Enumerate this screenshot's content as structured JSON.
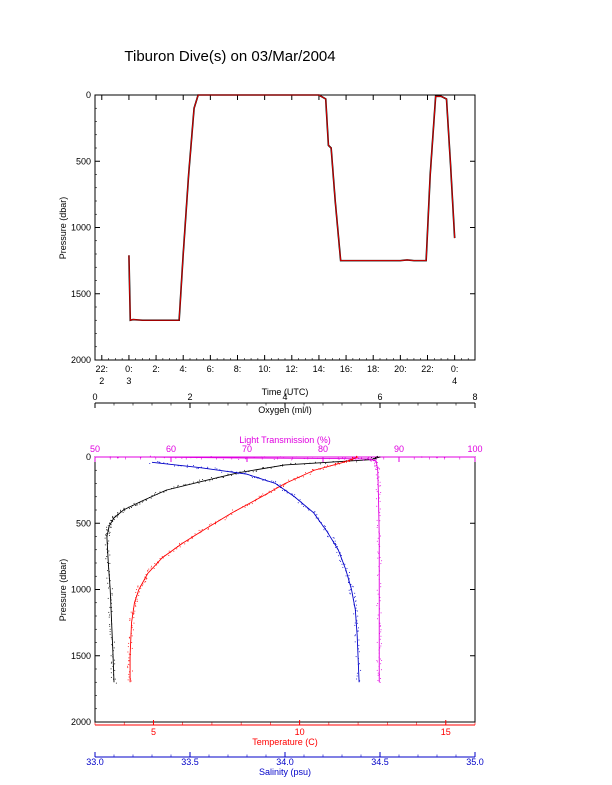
{
  "title": "Tiburon Dive(s) on 03/Mar/2004",
  "colors": {
    "axis": "#000000",
    "temperature": "#ff0000",
    "salinity": "#0000c8",
    "oxygen": "#000000",
    "transmission": "#e000e0",
    "depth_trace_line": "#ff0000",
    "depth_trace_points": "#000000"
  },
  "chart_data": [
    {
      "type": "line",
      "name": "depth-time",
      "xlabel": "Time (UTC)",
      "ylabel": "Pressure (dbar)",
      "xlim": [
        -2.5,
        25.5
      ],
      "ylim": [
        2000,
        0
      ],
      "ytick_values": [
        0,
        500,
        1000,
        1500,
        2000
      ],
      "ytick_labels": [
        "0",
        "500",
        "1000",
        "1500",
        "2000"
      ],
      "xticks": [
        {
          "x": -2,
          "line1": "22:",
          "line2": "2"
        },
        {
          "x": 0,
          "line1": "0:",
          "line2": "3"
        },
        {
          "x": 2,
          "line1": "2:",
          "line2": ""
        },
        {
          "x": 4,
          "line1": "4:",
          "line2": ""
        },
        {
          "x": 6,
          "line1": "6:",
          "line2": ""
        },
        {
          "x": 8,
          "line1": "8:",
          "line2": ""
        },
        {
          "x": 10,
          "line1": "10:",
          "line2": ""
        },
        {
          "x": 12,
          "line1": "12:",
          "line2": ""
        },
        {
          "x": 14,
          "line1": "14:",
          "line2": ""
        },
        {
          "x": 16,
          "line1": "16:",
          "line2": ""
        },
        {
          "x": 18,
          "line1": "18:",
          "line2": ""
        },
        {
          "x": 20,
          "line1": "20:",
          "line2": ""
        },
        {
          "x": 22,
          "line1": "22:",
          "line2": ""
        },
        {
          "x": 24,
          "line1": "0:",
          "line2": "4"
        }
      ],
      "x": [
        0.0,
        0.1,
        0.3,
        1.0,
        2.0,
        3.0,
        3.7,
        4.0,
        4.4,
        4.8,
        5.1,
        5.5,
        8.0,
        11.0,
        14.0,
        14.5,
        14.7,
        14.9,
        15.2,
        15.6,
        16.5,
        18.0,
        20.0,
        20.5,
        21.0,
        21.9,
        22.2,
        22.6,
        23.0,
        23.4,
        23.7,
        24.0
      ],
      "y": [
        1210,
        1700,
        1695,
        1700,
        1700,
        1700,
        1700,
        1200,
        600,
        100,
        0,
        0,
        0,
        0,
        0,
        30,
        380,
        400,
        800,
        1250,
        1250,
        1250,
        1250,
        1245,
        1250,
        1250,
        600,
        10,
        10,
        30,
        530,
        1080
      ]
    },
    {
      "type": "scatter",
      "name": "profiles",
      "ylabel": "Pressure (dbar)",
      "ylim": [
        2000,
        0
      ],
      "ytick_values": [
        0,
        500,
        1000,
        1500,
        2000
      ],
      "ytick_labels": [
        "0",
        "500",
        "1000",
        "1500",
        "2000"
      ],
      "axes": {
        "oxygen": {
          "label": "Oxygen (ml/l)",
          "range": [
            0,
            8
          ],
          "ticks": [
            0,
            2,
            4,
            6,
            8
          ],
          "tick_labels": [
            "0",
            "2",
            "4",
            "6",
            "8"
          ],
          "position": "top"
        },
        "transmission": {
          "label": "Light Transmission (%)",
          "range": [
            50,
            100
          ],
          "ticks": [
            50,
            60,
            70,
            80,
            90,
            100
          ],
          "tick_labels": [
            "50",
            "60",
            "70",
            "80",
            "90",
            "100"
          ],
          "position": "top"
        },
        "temperature": {
          "label": "Temperature (C)",
          "range": [
            3.0,
            16.0
          ],
          "ticks": [
            5,
            10,
            15
          ],
          "tick_labels": [
            "5",
            "10",
            "15"
          ],
          "position": "bottom"
        },
        "salinity": {
          "label": "Salinity (psu)",
          "range": [
            33.0,
            35.0
          ],
          "ticks": [
            33.0,
            33.5,
            34.0,
            34.5,
            35.0
          ],
          "tick_labels": [
            "33.0",
            "33.5",
            "34.0",
            "34.5",
            "35.0"
          ],
          "position": "bottom"
        }
      },
      "series": [
        {
          "key": "oxygen",
          "axis": "oxygen",
          "x": [
            6.0,
            5.8,
            4.0,
            3.0,
            2.3,
            1.5,
            1.0,
            0.6,
            0.4,
            0.3,
            0.25,
            0.28,
            0.32,
            0.35,
            0.38,
            0.4
          ],
          "y": [
            0,
            20,
            60,
            120,
            180,
            250,
            330,
            400,
            460,
            520,
            600,
            800,
            1000,
            1250,
            1500,
            1700
          ]
        },
        {
          "key": "transmission",
          "axis": "transmission",
          "x": [
            57,
            70,
            82,
            86,
            87.0,
            87.2,
            87.3,
            87.4,
            87.4,
            87.4,
            87.4,
            87.4
          ],
          "y": [
            0,
            8,
            12,
            15,
            30,
            100,
            300,
            600,
            900,
            1250,
            1500,
            1700
          ],
          "extra_x": [
            52,
            53,
            56,
            93,
            95,
            96
          ],
          "extra_y": [
            0,
            5,
            2,
            0,
            4,
            2
          ]
        },
        {
          "key": "temperature",
          "axis": "temperature",
          "x": [
            12.0,
            11.5,
            10.5,
            9.5,
            8.7,
            7.7,
            6.8,
            6.0,
            5.3,
            4.8,
            4.5,
            4.35,
            4.25,
            4.2,
            4.2
          ],
          "y": [
            0,
            40,
            100,
            200,
            300,
            420,
            540,
            650,
            760,
            880,
            1000,
            1100,
            1250,
            1500,
            1700
          ]
        },
        {
          "key": "salinity",
          "axis": "salinity",
          "x": [
            33.3,
            33.55,
            33.8,
            33.95,
            34.05,
            34.15,
            34.22,
            34.28,
            34.32,
            34.35,
            34.37,
            34.38,
            34.39
          ],
          "y": [
            40,
            80,
            130,
            200,
            300,
            420,
            560,
            700,
            850,
            1000,
            1150,
            1350,
            1700
          ]
        }
      ]
    }
  ]
}
